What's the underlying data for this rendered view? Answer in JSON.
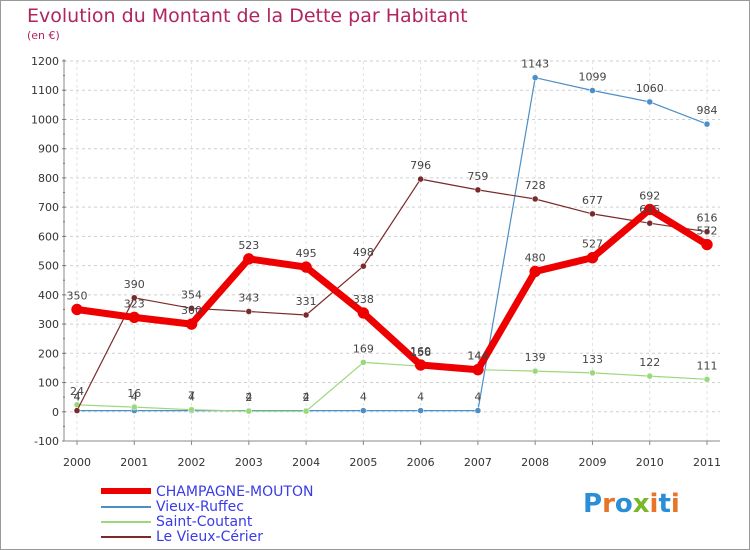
{
  "title": "Evolution du Montant de la Dette par Habitant",
  "subtitle": "(en €)",
  "brand": {
    "text": "Proxiti",
    "colors": [
      "#2a8fd6",
      "#e8742a",
      "#2a8fd6",
      "#79b828",
      "#e8742a",
      "#2a8fd6",
      "#e8742a"
    ]
  },
  "chart_data": {
    "type": "line",
    "x": [
      "2000",
      "2001",
      "2002",
      "2003",
      "2004",
      "2005",
      "2006",
      "2007",
      "2008",
      "2009",
      "2010",
      "2011"
    ],
    "ylim": [
      -100,
      1200
    ],
    "yticks": [
      -100,
      0,
      100,
      200,
      300,
      400,
      500,
      600,
      700,
      800,
      900,
      1000,
      1100,
      1200
    ],
    "grid": "dashed-horizontal",
    "legend": "bottom-left",
    "series": [
      {
        "name": "Vieux-Ruffec",
        "color": "#4a8fc8",
        "width": 1.2,
        "marker": 3,
        "values": [
          4,
          4,
          4,
          4,
          4,
          4,
          4,
          4,
          1143,
          1099,
          1060,
          984
        ],
        "labels": [
          "4",
          "4",
          "4",
          "4",
          "4",
          "4",
          "4",
          "4",
          "1143",
          "1099",
          "1060",
          "984"
        ]
      },
      {
        "name": "Saint-Coutant",
        "color": "#9ad87c",
        "width": 1.2,
        "marker": 3,
        "values": [
          24,
          16,
          7,
          2,
          2,
          169,
          156,
          144,
          139,
          133,
          122,
          111
        ],
        "labels": [
          "24",
          "16",
          "7",
          "2",
          "2",
          "169",
          "156",
          "144",
          "139",
          "133",
          "122",
          "111"
        ]
      },
      {
        "name": "Le Vieux-Cérier",
        "color": "#7a2a2a",
        "width": 1.2,
        "marker": 3,
        "values": [
          4,
          390,
          354,
          343,
          331,
          498,
          796,
          759,
          728,
          677,
          645,
          616
        ],
        "labels": [
          "4",
          "390",
          "354",
          "343",
          "331",
          "498",
          "796",
          "759",
          "728",
          "677",
          "645",
          "616"
        ]
      },
      {
        "name": "CHAMPAGNE-MOUTON",
        "color": "#ee0000",
        "width": 7,
        "marker": 5.5,
        "values": [
          350,
          323,
          300,
          523,
          495,
          338,
          160,
          144,
          480,
          527,
          692,
          572
        ],
        "labels": [
          "350",
          "323",
          "300",
          "523",
          "495",
          "338",
          "160",
          "144",
          "480",
          "527",
          "692",
          "572"
        ]
      }
    ]
  }
}
